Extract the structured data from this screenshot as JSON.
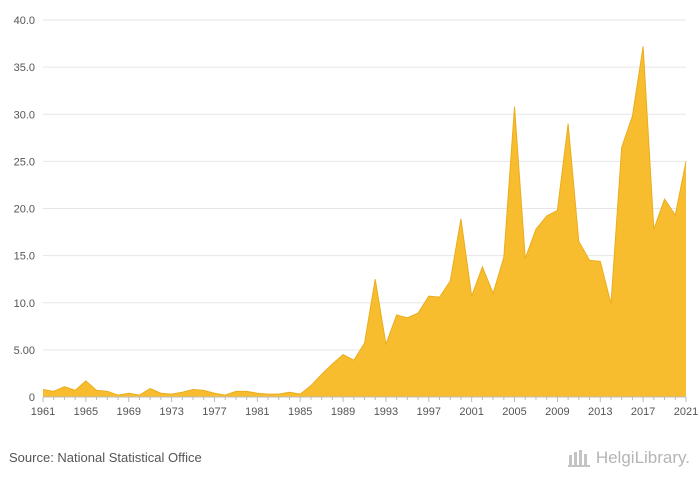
{
  "chart_data": {
    "type": "area",
    "x": [
      1961,
      1962,
      1963,
      1964,
      1965,
      1966,
      1967,
      1968,
      1969,
      1970,
      1971,
      1972,
      1973,
      1974,
      1975,
      1976,
      1977,
      1978,
      1979,
      1980,
      1981,
      1982,
      1983,
      1984,
      1985,
      1986,
      1987,
      1988,
      1989,
      1990,
      1991,
      1992,
      1993,
      1994,
      1995,
      1996,
      1997,
      1998,
      1999,
      2000,
      2001,
      2002,
      2003,
      2004,
      2005,
      2006,
      2007,
      2008,
      2009,
      2010,
      2011,
      2012,
      2013,
      2014,
      2015,
      2016,
      2017,
      2018,
      2019,
      2020,
      2021
    ],
    "values": [
      0.8,
      0.6,
      1.1,
      0.7,
      1.7,
      0.7,
      0.6,
      0.2,
      0.4,
      0.2,
      0.9,
      0.4,
      0.3,
      0.5,
      0.8,
      0.7,
      0.4,
      0.2,
      0.6,
      0.6,
      0.4,
      0.3,
      0.3,
      0.5,
      0.3,
      1.2,
      2.4,
      3.5,
      4.5,
      3.9,
      5.7,
      12.5,
      5.6,
      8.7,
      8.4,
      8.9,
      10.7,
      10.6,
      12.3,
      18.9,
      10.7,
      13.8,
      11.0,
      14.8,
      30.8,
      14.7,
      17.8,
      19.2,
      19.8,
      29.0,
      16.5,
      14.5,
      14.4,
      9.9,
      26.5,
      29.8,
      37.2,
      17.8,
      21.0,
      19.3,
      25.0
    ],
    "x_tick_labels": [
      "1961",
      "1965",
      "1969",
      "1973",
      "1977",
      "1981",
      "1985",
      "1989",
      "1993",
      "1997",
      "2001",
      "2005",
      "2009",
      "2013",
      "2017",
      "2021"
    ],
    "y_tick_labels": [
      "0",
      "5.00",
      "10.0",
      "15.0",
      "20.0",
      "25.0",
      "30.0",
      "35.0",
      "40.0"
    ],
    "y_ticks": [
      0,
      5,
      10,
      15,
      20,
      25,
      30,
      35,
      40
    ],
    "ylim": [
      0,
      40
    ],
    "xlim": [
      1961,
      2021
    ],
    "grid": "horizontal",
    "fill_color": "#f8bd2f",
    "line_color": "#e9ad1e",
    "title": "",
    "xlabel": "",
    "ylabel": ""
  },
  "footer": {
    "source": "Source: National Statistical Office",
    "brand": "HelgiLibrary."
  },
  "colors": {
    "grid": "#e6e6e6",
    "axis": "#bbbbbb",
    "text": "#555555",
    "brand": "#b5b5b5"
  },
  "icons": {
    "brand": "library-skyline-icon"
  }
}
